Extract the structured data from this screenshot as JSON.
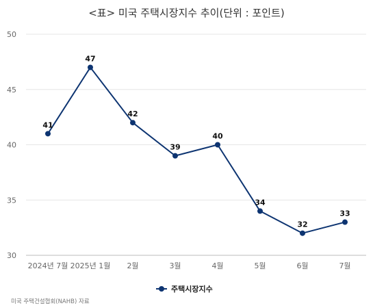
{
  "chart_data": {
    "type": "line",
    "title": "<표> 미국 주택시장지수 추이(단위 : 포인트)",
    "categories": [
      "2024년 7월",
      "2025년 1월",
      "2월",
      "3월",
      "4월",
      "5월",
      "6월",
      "7월"
    ],
    "series": [
      {
        "name": "주택시장지수",
        "values": [
          41,
          47,
          42,
          39,
          40,
          34,
          32,
          33
        ],
        "color": "#0d3471"
      }
    ],
    "ylim": [
      30,
      50
    ],
    "yticks": [
      "30",
      "35",
      "40",
      "45",
      "50"
    ],
    "grid": "horizontal",
    "legend": "bottom-center",
    "xlabel": "",
    "ylabel": ""
  },
  "source_note": "미국 주택건설협회(NAHB) 자료"
}
